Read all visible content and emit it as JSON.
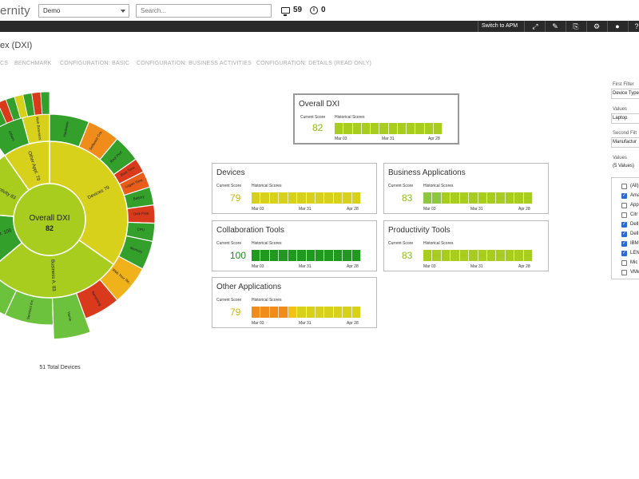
{
  "header": {
    "logo": "ernity",
    "environment": "Demo",
    "search_placeholder": "Search...",
    "device_count": "59",
    "alert_count": "0"
  },
  "toolbar": {
    "switch_label": "Switch to APM",
    "icons": [
      "fullscreen-icon",
      "edit-icon",
      "export-icon",
      "settings-icon",
      "user-icon",
      "help-icon"
    ]
  },
  "page": {
    "title": "ex (DXI)",
    "tabs": [
      "CS",
      "BENCHMARK",
      "CONFIGURATION: BASIC",
      "CONFIGURATION: BUSINESS ACTIVITIES",
      "CONFIGURATION: DETAILS (READ ONLY)"
    ]
  },
  "sunburst": {
    "center_label": "Overall DXI",
    "center_value": "82",
    "total_label": "51 Total Devices",
    "inner": [
      {
        "label": "Devices",
        "value": "79",
        "color": "#d7d11c"
      },
      {
        "label": "Business A.",
        "value": "83",
        "color": "#a8cd1f"
      },
      {
        "label": "Collaborat.",
        "value": "100",
        "color": "#33a02c"
      },
      {
        "label": "Productivity",
        "value": "83",
        "color": "#a8cd1f"
      },
      {
        "label": "Other Appl.",
        "value": "79",
        "color": "#d7d11c"
      }
    ],
    "outer": [
      {
        "label": "Hardware",
        "color": "#33a02c"
      },
      {
        "label": "Software Cra.",
        "color": "#f08c1a"
      },
      {
        "label": "Boot Perf.",
        "color": "#33a02c"
      },
      {
        "label": "Boot Time",
        "color": "#d93a1c"
      },
      {
        "label": "Logon Time",
        "color": "#e85d1a"
      },
      {
        "label": "Battery",
        "color": "#33a02c"
      },
      {
        "label": "Disk Free",
        "color": "#d93a1c"
      },
      {
        "label": "CPU",
        "color": "#33a02c"
      },
      {
        "label": "Memory",
        "color": "#33a02c"
      },
      {
        "label": "Web Your Re..",
        "color": "#f0b21a"
      },
      {
        "label": "Renaming",
        "color": "#d93a1c"
      },
      {
        "label": "Home",
        "color": "#6cc23c"
      },
      {
        "label": "Services Inc.",
        "color": "#6cc23c"
      },
      {
        "label": "SAP",
        "color": "#6cc23c"
      },
      {
        "label": "Others",
        "color": "#33a02c"
      },
      {
        "label": "Web Browsers",
        "color": "#d7d11c"
      }
    ]
  },
  "cards": {
    "scores_label": "Current Score",
    "history_label": "Historical Scores",
    "dates": [
      "Mar 03",
      "Mar 31",
      "Apr 28"
    ],
    "overall": {
      "title": "Overall DXI",
      "score": "82",
      "score_color": "#8dbb1d",
      "bars": [
        "#a8cd1f",
        "#a8cd1f",
        "#a8cd1f",
        "#a8cd1f",
        "#a8cd1f",
        "#a8cd1f",
        "#a8cd1f",
        "#a8cd1f",
        "#a8cd1f",
        "#a8cd1f",
        "#a8cd1f",
        "#a8cd1f"
      ]
    },
    "devices": {
      "title": "Devices",
      "score": "79",
      "score_color": "#c8b80a",
      "bars": [
        "#d7d11c",
        "#d7d11c",
        "#d7d11c",
        "#d7d11c",
        "#d7d11c",
        "#d7d11c",
        "#d7d11c",
        "#d7d11c",
        "#d7d11c",
        "#d7d11c",
        "#d7d11c",
        "#d7d11c"
      ]
    },
    "business": {
      "title": "Business Applications",
      "score": "83",
      "score_color": "#8dbb1d",
      "bars": [
        "#8dc63f",
        "#8dc63f",
        "#a8cd1f",
        "#a8cd1f",
        "#a8cd1f",
        "#a8cd1f",
        "#a8cd1f",
        "#a8cd1f",
        "#a8cd1f",
        "#a8cd1f",
        "#a8cd1f",
        "#a8cd1f"
      ]
    },
    "collaboration": {
      "title": "Collaboration Tools",
      "score": "100",
      "score_color": "#1f8a1f",
      "bars": [
        "#1f9a1f",
        "#1f9a1f",
        "#1f9a1f",
        "#1f9a1f",
        "#1f9a1f",
        "#1f9a1f",
        "#1f9a1f",
        "#1f9a1f",
        "#1f9a1f",
        "#1f9a1f",
        "#1f9a1f",
        "#1f9a1f"
      ]
    },
    "productivity": {
      "title": "Productivity Tools",
      "score": "83",
      "score_color": "#8dbb1d",
      "bars": [
        "#a8cd1f",
        "#a8cd1f",
        "#a8cd1f",
        "#a8cd1f",
        "#a8cd1f",
        "#a8cd1f",
        "#a8cd1f",
        "#a8cd1f",
        "#a8cd1f",
        "#a8cd1f",
        "#a8cd1f",
        "#a8cd1f"
      ]
    },
    "other": {
      "title": "Other Applications",
      "score": "79",
      "score_color": "#c8b80a",
      "bars": [
        "#f08c1a",
        "#f08c1a",
        "#f08c1a",
        "#f08c1a",
        "#f0c21a",
        "#d7d11c",
        "#d7d11c",
        "#d7d11c",
        "#d7d11c",
        "#d7d11c",
        "#d7d11c",
        "#d7d11c"
      ]
    }
  },
  "filters": {
    "first_label": "First Filter",
    "first_value": "Device Type",
    "values_label": "Values",
    "values_value": "Laptop",
    "second_label": "Second Filt",
    "second_value": "Manufactur",
    "values2_label": "Values",
    "values2_value": "(5 Values)",
    "options": [
      {
        "label": "(All)",
        "checked": false
      },
      {
        "label": "Ama",
        "checked": true
      },
      {
        "label": "App",
        "checked": false
      },
      {
        "label": "Citr",
        "checked": false
      },
      {
        "label": "Dell",
        "checked": true
      },
      {
        "label": "Dell",
        "checked": true
      },
      {
        "label": "IBM",
        "checked": true
      },
      {
        "label": "LEN",
        "checked": true
      },
      {
        "label": "Mic",
        "checked": false
      },
      {
        "label": "VMw",
        "checked": false
      }
    ]
  }
}
